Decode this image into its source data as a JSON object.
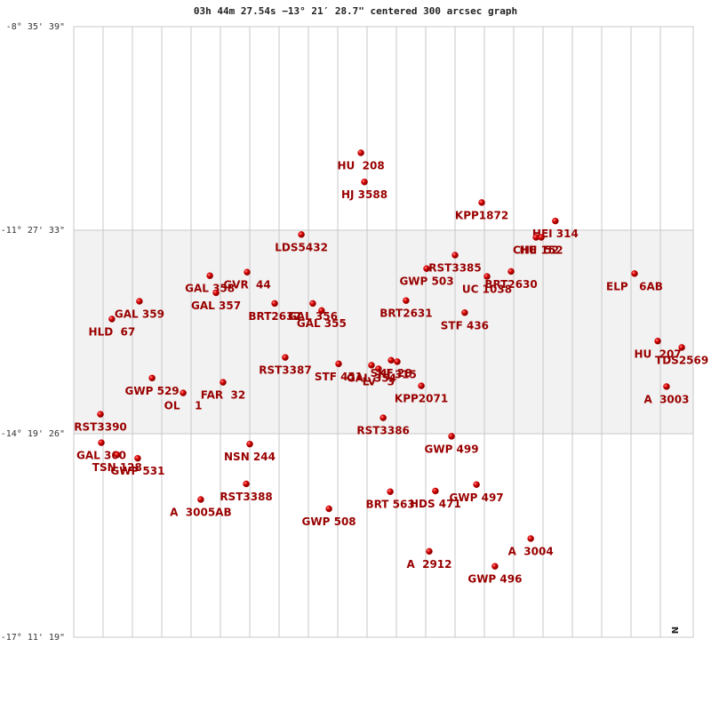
{
  "chart_data": {
    "type": "scatter",
    "title": "03h 44m 27.54s −13° 21′ 28.7\" centered 300 arcsec graph",
    "north_label": "N",
    "xlim": [
      0,
      21.12
    ],
    "xticks": [
      1,
      2,
      3,
      4,
      5,
      6,
      7,
      8,
      9,
      10,
      11,
      12,
      13,
      14,
      15,
      16,
      17,
      18,
      19,
      20
    ],
    "ylim": [
      -17.1886,
      -8.5942
    ],
    "yticks": [
      {
        "value": -8.5942,
        "label": "-8° 35' 39\""
      },
      {
        "value": -11.4592,
        "label": "-11° 27' 33\""
      },
      {
        "value": -14.3239,
        "label": "-14° 19' 26\""
      },
      {
        "value": -17.1886,
        "label": "-17° 11' 19\""
      }
    ],
    "grid": true,
    "color": "#cc0000",
    "label_color": "#990000",
    "series": [
      {
        "labels": [
          "HU  208",
          "HJ 3588",
          "KPP1872",
          "HEI 314",
          "CHE  52",
          "HU 152",
          "LDS5432",
          "RST3385",
          "GWP 503",
          "BRT2630",
          "UC 1038",
          "ELP   6AB",
          "GAL 358",
          "GVR  44",
          "GAL 357",
          "GAL 359",
          "HLD  67",
          "BRT2632",
          "GAL 356",
          "GAL 355",
          "BRT2631",
          "STF 436",
          "HU  207",
          "TDS2569",
          "RST3387",
          "STF 451",
          "GAL 354",
          "LV   3",
          "SKF 28",
          "HJ 315",
          "KPP2071",
          "A  3003",
          "GWP 529",
          "OL    1",
          "FAR  32",
          "RST3390",
          "RST3386",
          "GWP 499",
          "GAL 360",
          "TSN 128",
          "GWP 531",
          "NSN 244",
          "RST3388",
          "A  3005AB",
          "GWP 508",
          "BRT 563",
          "HDS 471",
          "GWP 497",
          "A  3004",
          "A  2912",
          "GWP 496"
        ],
        "x": [
          9.79,
          9.91,
          13.91,
          16.42,
          15.76,
          15.94,
          7.76,
          13.0,
          12.03,
          14.91,
          14.09,
          19.12,
          4.64,
          5.91,
          4.85,
          2.24,
          1.3,
          6.85,
          8.15,
          8.45,
          11.33,
          13.33,
          19.91,
          20.73,
          7.21,
          9.03,
          10.15,
          10.39,
          10.82,
          11.03,
          11.85,
          20.21,
          2.67,
          3.73,
          5.09,
          0.91,
          10.55,
          12.88,
          0.94,
          1.48,
          2.18,
          6.0,
          5.88,
          4.33,
          8.7,
          10.79,
          12.33,
          13.73,
          15.58,
          12.12,
          14.36
        ],
        "values": [
          -10.37,
          -10.78,
          -11.07,
          -11.33,
          -11.56,
          -11.56,
          -11.52,
          -11.81,
          -12.0,
          -12.04,
          -12.11,
          -12.07,
          -12.1,
          -12.05,
          -12.34,
          -12.46,
          -12.71,
          -12.49,
          -12.49,
          -12.59,
          -12.45,
          -12.62,
          -13.02,
          -13.11,
          -13.25,
          -13.34,
          -13.36,
          -13.41,
          -13.29,
          -13.31,
          -13.65,
          -13.66,
          -13.54,
          -13.75,
          -13.6,
          -14.05,
          -14.1,
          -14.36,
          -14.45,
          -14.62,
          -14.67,
          -14.47,
          -15.03,
          -15.25,
          -15.38,
          -15.14,
          -15.13,
          -15.04,
          -15.8,
          -15.98,
          -16.19
        ]
      }
    ]
  }
}
